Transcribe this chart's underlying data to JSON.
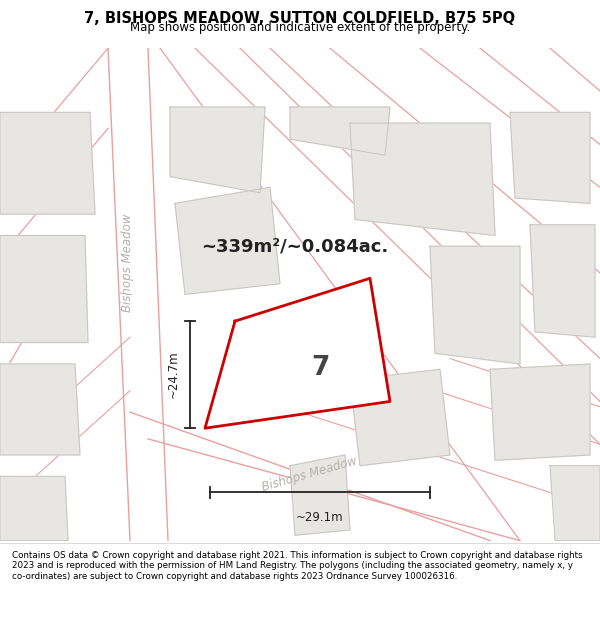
{
  "title": "7, BISHOPS MEADOW, SUTTON COLDFIELD, B75 5PQ",
  "subtitle": "Map shows position and indicative extent of the property.",
  "area_text": "~339m²/~0.084ac.",
  "plot_number": "7",
  "dim_width": "~29.1m",
  "dim_height": "~24.7m",
  "footer": "Contains OS data © Crown copyright and database right 2021. This information is subject to Crown copyright and database rights 2023 and is reproduced with the permission of HM Land Registry. The polygons (including the associated geometry, namely x, y co-ordinates) are subject to Crown copyright and database rights 2023 Ordnance Survey 100026316.",
  "bg_color": "#ffffff",
  "map_bg": "#f5f4f2",
  "building_color": "#e8e6e3",
  "building_edge": "#c8c5c0",
  "road_line_color": "#e8a0a0",
  "plot_fill": "#ffffff",
  "plot_edge": "#cc0000",
  "street_label_color": "#b0aaaa",
  "dim_color": "#222222",
  "area_text_color": "#222222",
  "plot_num_color": "#444444"
}
